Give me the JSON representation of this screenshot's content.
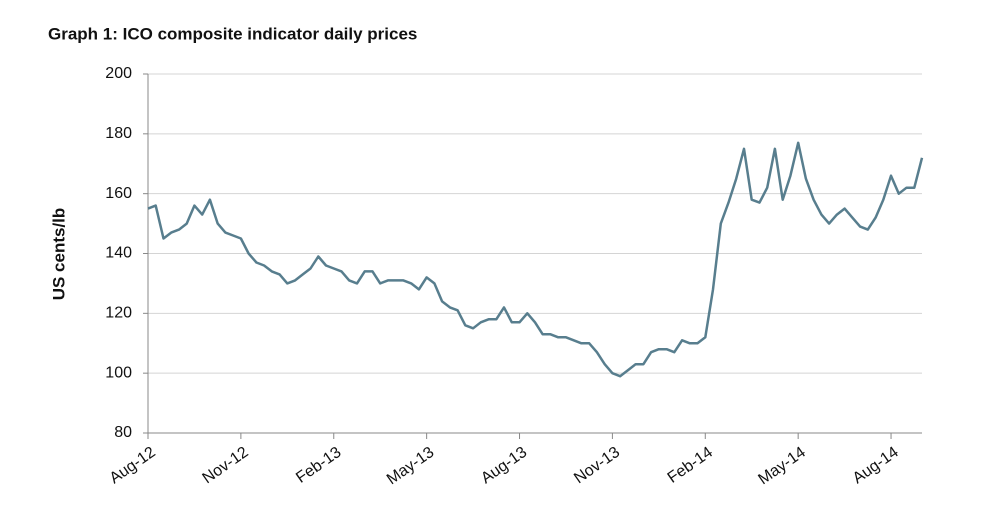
{
  "chart_data": {
    "type": "line",
    "title": "Graph 1: ICO composite indicator daily prices",
    "ylabel": "US cents/lb",
    "categories": [
      "Aug-12",
      null,
      null,
      null,
      null,
      null,
      null,
      null,
      null,
      null,
      null,
      null,
      "Nov-12",
      null,
      null,
      null,
      null,
      null,
      null,
      null,
      null,
      null,
      null,
      null,
      "Feb-13",
      null,
      null,
      null,
      null,
      null,
      null,
      null,
      null,
      null,
      null,
      null,
      "May-13",
      null,
      null,
      null,
      null,
      null,
      null,
      null,
      null,
      null,
      null,
      null,
      "Aug-13",
      null,
      null,
      null,
      null,
      null,
      null,
      null,
      null,
      null,
      null,
      null,
      "Nov-13",
      null,
      null,
      null,
      null,
      null,
      null,
      null,
      null,
      null,
      null,
      null,
      "Feb-14",
      null,
      null,
      null,
      null,
      null,
      null,
      null,
      null,
      null,
      null,
      null,
      "May-14",
      null,
      null,
      null,
      null,
      null,
      null,
      null,
      null,
      null,
      null,
      null,
      "Aug-14",
      null,
      null,
      null,
      null
    ],
    "series": [
      {
        "name": "ICO composite indicator",
        "color": "#587e8e",
        "values": [
          155,
          156,
          145,
          147,
          148,
          150,
          156,
          153,
          158,
          150,
          147,
          146,
          145,
          140,
          137,
          136,
          134,
          133,
          130,
          131,
          133,
          135,
          139,
          136,
          135,
          134,
          131,
          130,
          134,
          134,
          130,
          131,
          131,
          131,
          130,
          128,
          132,
          130,
          124,
          122,
          121,
          116,
          115,
          117,
          118,
          118,
          122,
          117,
          117,
          120,
          117,
          113,
          113,
          112,
          112,
          111,
          110,
          110,
          107,
          103,
          100,
          99,
          101,
          103,
          103,
          107,
          108,
          108,
          107,
          111,
          110,
          110,
          112,
          128,
          150,
          157,
          165,
          175,
          158,
          157,
          162,
          175,
          158,
          166,
          177,
          165,
          158,
          153,
          150,
          153,
          155,
          152,
          149,
          148,
          152,
          158,
          166,
          160,
          162,
          162,
          172
        ]
      }
    ],
    "ylim": [
      80,
      200
    ],
    "yticks": [
      80,
      100,
      120,
      140,
      160,
      180,
      200
    ],
    "grid": true
  }
}
